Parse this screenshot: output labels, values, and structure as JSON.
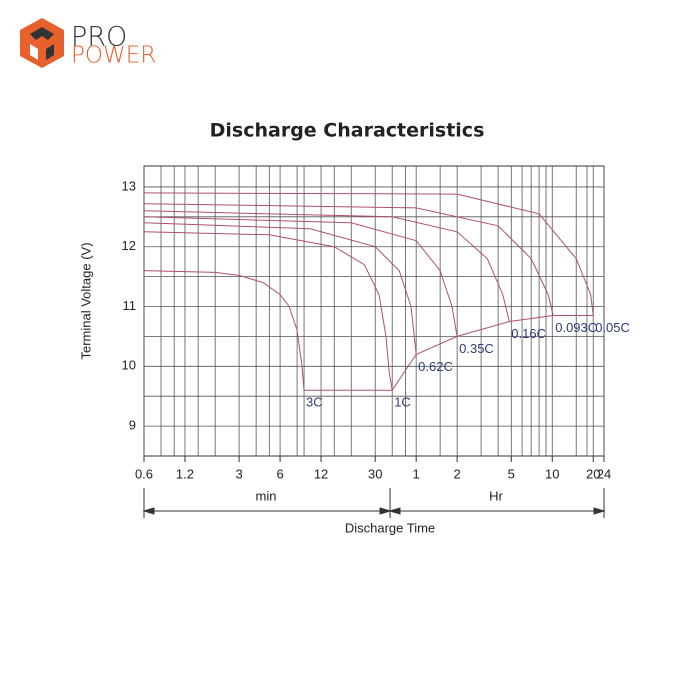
{
  "logo": {
    "line1": "PRO",
    "line2": "POWER"
  },
  "chart_data": {
    "type": "line",
    "title": "Discharge Characteristics",
    "y_label": "Terminal Voltage  (V)",
    "x_label": "Discharge Time",
    "x_unit_left": "min",
    "x_unit_right": "Hr",
    "xscale": "log",
    "grid": true,
    "xlim": [
      0.6,
      1440
    ],
    "ylim": [
      8.5,
      13.35
    ],
    "xticks": [
      0.6,
      1.2,
      3,
      6,
      12,
      30,
      {
        "value": 60,
        "label": "1"
      },
      {
        "value": 120,
        "label": "2"
      },
      {
        "value": 300,
        "label": "5"
      },
      {
        "value": 600,
        "label": "10"
      },
      {
        "value": 1200,
        "label": "20"
      },
      {
        "value": 1440,
        "label": "24"
      }
    ],
    "xminorticks": [
      0.8,
      1,
      1.5,
      2,
      4,
      5,
      8,
      9,
      15,
      20,
      40,
      50,
      90,
      180,
      240,
      360,
      420,
      480,
      540,
      900,
      1080
    ],
    "yticks": [
      9,
      10,
      11,
      12,
      13
    ],
    "yminorticks": [
      9.5,
      10.5,
      11.5,
      12.5
    ],
    "label_color": "#2f3a7a",
    "series": [
      {
        "name": "3C",
        "color": "#b0506e",
        "x": [
          0.6,
          2,
          3,
          4.5,
          6,
          7,
          8,
          8.7,
          9
        ],
        "values": [
          11.6,
          11.57,
          11.52,
          11.4,
          11.2,
          11.0,
          10.6,
          10.0,
          9.6
        ]
      },
      {
        "name": "1C",
        "color": "#b0506e",
        "x": [
          0.6,
          5,
          15,
          25,
          32,
          36,
          38,
          40
        ],
        "values": [
          12.25,
          12.2,
          12.0,
          11.7,
          11.2,
          10.5,
          9.9,
          9.6
        ]
      },
      {
        "name": "0.62C",
        "color": "#b0506e",
        "x": [
          0.6,
          10,
          30,
          45,
          55,
          60
        ],
        "values": [
          12.4,
          12.3,
          12.0,
          11.6,
          11.0,
          10.2
        ]
      },
      {
        "name": "0.35C",
        "color": "#b0506e",
        "x": [
          0.6,
          20,
          60,
          90,
          110,
          120
        ],
        "values": [
          12.5,
          12.4,
          12.1,
          11.6,
          11.0,
          10.5
        ]
      },
      {
        "name": "0.16C",
        "color": "#b0506e",
        "x": [
          0.6,
          40,
          120,
          200,
          260,
          290
        ],
        "values": [
          12.6,
          12.5,
          12.25,
          11.8,
          11.2,
          10.75
        ]
      },
      {
        "name": "0.093C",
        "color": "#b0506e",
        "x": [
          0.6,
          60,
          240,
          420,
          560,
          610
        ],
        "values": [
          12.72,
          12.65,
          12.35,
          11.8,
          11.2,
          10.85
        ]
      },
      {
        "name": "0.05C",
        "color": "#b0506e",
        "x": [
          0.6,
          120,
          480,
          900,
          1150,
          1200
        ],
        "values": [
          12.9,
          12.88,
          12.55,
          11.8,
          11.2,
          10.85
        ]
      },
      {
        "color": "#b0506e",
        "x": [
          9,
          40,
          60,
          120,
          290,
          610,
          1200
        ],
        "values": [
          9.6,
          9.6,
          10.2,
          10.5,
          10.75,
          10.85,
          10.85
        ]
      }
    ]
  }
}
